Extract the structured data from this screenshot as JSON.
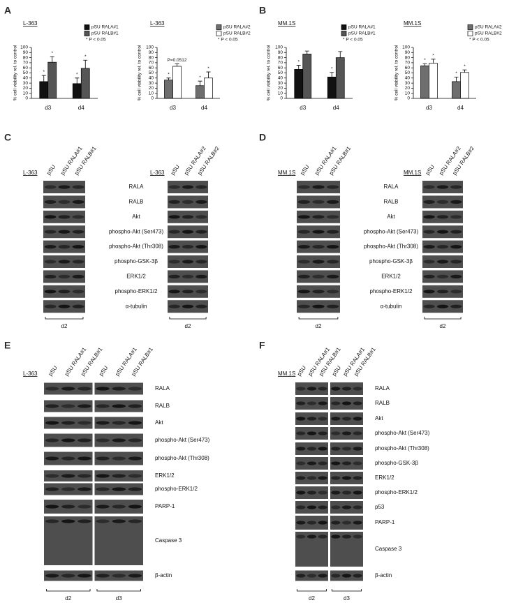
{
  "figure": {
    "panel_labels": [
      "A",
      "B",
      "C",
      "D",
      "E",
      "F"
    ],
    "blots": {
      "C": {
        "blots": [
          {
            "cell_line": "L-363",
            "lanes": [
              "pSU",
              "pSU RALA#1",
              "pSU RALB#1"
            ],
            "timepoints": [
              "d2"
            ]
          },
          {
            "cell_line": "L-363",
            "lanes": [
              "pSU",
              "pSU RALA#2",
              "pSU RALB#2"
            ],
            "timepoints": [
              "d2"
            ]
          }
        ],
        "proteins": [
          "RALA",
          "RALB",
          "Akt",
          "phospho-Akt (Ser473)",
          "phospho-Akt (Thr308)",
          "phospho-GSK-3β",
          "ERK1/2",
          "phospho-ERK1/2",
          "α-tubulin"
        ]
      },
      "D": {
        "blots": [
          {
            "cell_line": "MM.1S",
            "lanes": [
              "pSU",
              "pSU RALA#1",
              "pSU RALB#1"
            ],
            "timepoints": [
              "d2"
            ]
          },
          {
            "cell_line": "MM.1S",
            "lanes": [
              "pSU",
              "pSU RALA#2",
              "pSU RALB#2"
            ],
            "timepoints": [
              "d2"
            ]
          }
        ],
        "proteins": [
          "RALA",
          "RALB",
          "Akt",
          "phospho-Akt (Ser473)",
          "phospho-Akt (Thr308)",
          "phospho-GSK-3β",
          "ERK1/2",
          "phospho-ERK1/2",
          "α-tubulin"
        ]
      },
      "E": {
        "blots": [
          {
            "cell_line": "L-363",
            "lanes": [
              "pSU",
              "pSU RALA#1",
              "pSU RALB#1",
              "pSU",
              "pSU RALA#1",
              "pSU RALB#1"
            ],
            "timepoints": [
              "d2",
              "d3"
            ]
          }
        ],
        "proteins": [
          "RALA",
          "RALB",
          "Akt",
          "phospho-Akt (Ser473)",
          "phospho-Akt (Thr308)",
          "ERK1/2",
          "phospho-ERK1/2",
          "PARP-1",
          "Caspase 3",
          "β-actin"
        ]
      },
      "F": {
        "blots": [
          {
            "cell_line": "MM.1S",
            "lanes": [
              "pSU",
              "pSU RALA#1",
              "pSU RALB#1",
              "pSU",
              "pSU RALA#1",
              "pSU RALB#1"
            ],
            "timepoints": [
              "d2",
              "d3"
            ]
          }
        ],
        "proteins": [
          "RALA",
          "RALB",
          "Akt",
          "phospho-Akt (Ser473)",
          "phospho-Akt (Thr308)",
          "phospho-GSK-3β",
          "ERK1/2",
          "phospho-ERK1/2",
          "p53",
          "PARP-1",
          "Caspase 3",
          "β-actin"
        ]
      }
    }
  },
  "chart_data": [
    {
      "type": "bar",
      "title": "L-363",
      "y_label": "% cell viability rel. to control",
      "note": "* P < 0.05",
      "categories": [
        "d3",
        "d4"
      ],
      "ylim": [
        0,
        100
      ],
      "yticks": [
        0,
        10,
        20,
        30,
        40,
        50,
        60,
        70,
        80,
        90,
        100
      ],
      "series": [
        {
          "name": "pSU RALA#1",
          "color": "#111111",
          "values": [
            33,
            29
          ],
          "errors": [
            12,
            11
          ],
          "annotations": [
            "*",
            "*"
          ]
        },
        {
          "name": "pSU RALB#1",
          "color": "#555555",
          "values": [
            71,
            59
          ],
          "errors": [
            11,
            16
          ],
          "annotations": [
            "*",
            "*"
          ]
        }
      ]
    },
    {
      "type": "bar",
      "title": "L-363",
      "y_label": "% cell viability rel. to control",
      "note": "* P < 0.05",
      "categories": [
        "d3",
        "d4"
      ],
      "ylim": [
        0,
        100
      ],
      "yticks": [
        0,
        10,
        20,
        30,
        40,
        50,
        60,
        70,
        80,
        90,
        100
      ],
      "series": [
        {
          "name": "pSU RALA#2",
          "color": "#6e6e6e",
          "values": [
            36,
            25
          ],
          "errors": [
            4,
            9
          ],
          "annotations": [
            "*",
            "*"
          ]
        },
        {
          "name": "pSU RALB#2",
          "color": "#ffffff",
          "values": [
            63,
            40
          ],
          "errors": [
            5,
            12
          ],
          "annotations": [
            "P=0.0512",
            "*"
          ]
        }
      ]
    },
    {
      "type": "bar",
      "title": "MM.1S",
      "y_label": "% cell viability rel. to control",
      "note": "* P < 0.05",
      "categories": [
        "d3",
        "d4"
      ],
      "ylim": [
        0,
        100
      ],
      "yticks": [
        0,
        10,
        20,
        30,
        40,
        50,
        60,
        70,
        80,
        90,
        100
      ],
      "series": [
        {
          "name": "pSU RALA#1",
          "color": "#111111",
          "values": [
            57,
            42
          ],
          "errors": [
            8,
            9
          ],
          "annotations": [
            "*",
            "*"
          ]
        },
        {
          "name": "pSU RALB#1",
          "color": "#555555",
          "values": [
            87,
            80
          ],
          "errors": [
            6,
            12
          ],
          "annotations": [
            null,
            null
          ]
        }
      ]
    },
    {
      "type": "bar",
      "title": "MM.1S",
      "y_label": "% cell viability rel. to control",
      "note": "* P < 0.05",
      "categories": [
        "d3",
        "d4"
      ],
      "ylim": [
        0,
        100
      ],
      "yticks": [
        0,
        10,
        20,
        30,
        40,
        50,
        60,
        70,
        80,
        90,
        100
      ],
      "series": [
        {
          "name": "pSU RALA#2",
          "color": "#6e6e6e",
          "values": [
            64,
            33
          ],
          "errors": [
            4,
            9
          ],
          "annotations": [
            "*",
            "*"
          ]
        },
        {
          "name": "pSU RALB#2",
          "color": "#ffffff",
          "values": [
            69,
            51
          ],
          "errors": [
            8,
            5
          ],
          "annotations": [
            "*",
            "*"
          ]
        }
      ]
    }
  ]
}
